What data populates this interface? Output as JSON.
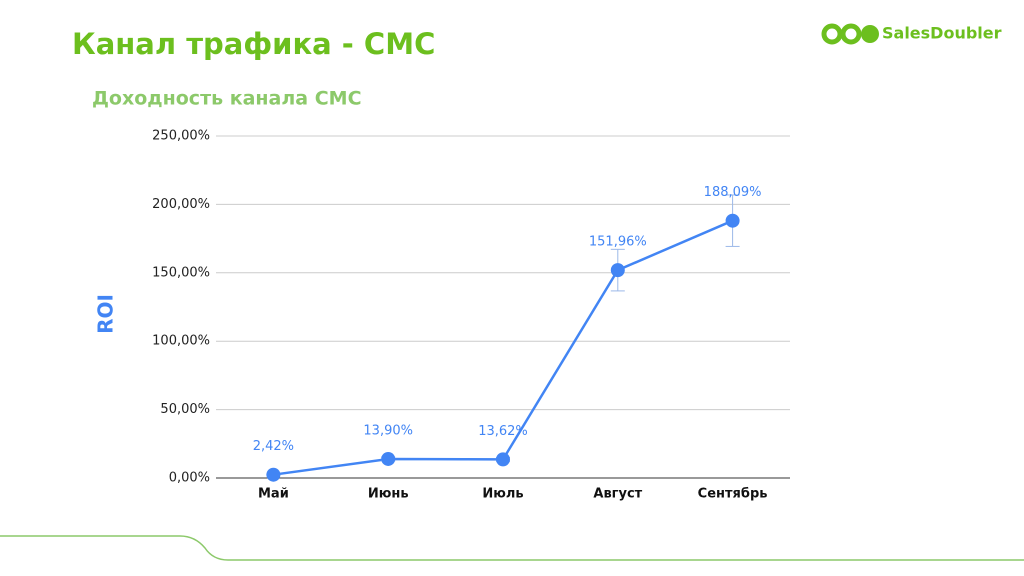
{
  "header": {
    "title": "Канал трафика - СМС",
    "logo": "SalesDoubler"
  },
  "chart_data": {
    "type": "line",
    "title": "Доходность канала СМС",
    "y_label": "ROI",
    "categories": [
      "Май",
      "Июнь",
      "Июль",
      "Август",
      "Сентябрь"
    ],
    "series": [
      {
        "name": "ROI",
        "color": "#4285f4",
        "values": [
          2.42,
          13.9,
          13.62,
          151.96,
          188.09
        ],
        "value_labels": [
          "2,42%",
          "13,90%",
          "13,62%",
          "151,96%",
          "188,09%"
        ],
        "errors": [
          0.242,
          1.39,
          1.362,
          15.196,
          18.809
        ]
      }
    ],
    "ylim": [
      0,
      250
    ],
    "yticks": [
      {
        "value": 0,
        "label": "0,00%"
      },
      {
        "value": 50,
        "label": "50,00%"
      },
      {
        "value": 100,
        "label": "100,00%"
      },
      {
        "value": 150,
        "label": "150,00%"
      },
      {
        "value": 200,
        "label": "200,00%"
      },
      {
        "value": 250,
        "label": "250,00%"
      }
    ],
    "grid": true
  }
}
